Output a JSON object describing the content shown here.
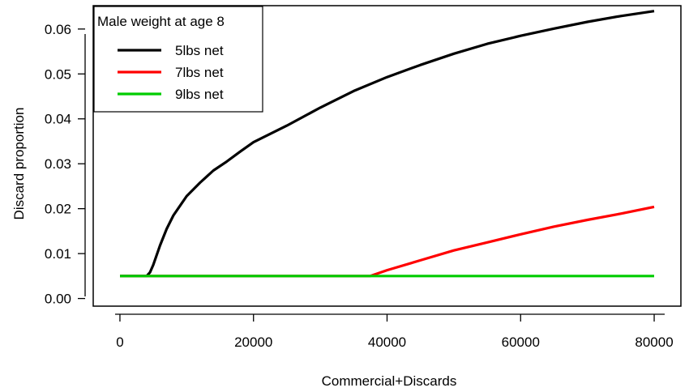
{
  "chart_data": {
    "type": "line",
    "title": "",
    "xlabel": "Commercial+Discards",
    "ylabel": "Discard proportion",
    "xlim": [
      -4000,
      84000
    ],
    "ylim": [
      -0.0017,
      0.0652
    ],
    "xticks": [
      0,
      20000,
      40000,
      60000,
      80000
    ],
    "xtick_labels": [
      "0",
      "20000",
      "40000",
      "60000",
      "80000"
    ],
    "yticks": [
      0.0,
      0.01,
      0.02,
      0.03,
      0.04,
      0.05,
      0.06
    ],
    "ytick_labels": [
      "0.00",
      "0.01",
      "0.02",
      "0.03",
      "0.04",
      "0.05",
      "0.06"
    ],
    "grid": false,
    "legend": {
      "title": "Male weight at age 8",
      "placement": "top-left"
    },
    "series": [
      {
        "name": "5lbs net",
        "color": "#000000",
        "x": [
          0,
          4000,
          4500,
          5000,
          6000,
          7000,
          8000,
          10000,
          12000,
          14000,
          16000,
          18000,
          20000,
          25000,
          30000,
          35000,
          40000,
          45000,
          50000,
          55000,
          60000,
          65000,
          70000,
          75000,
          80000
        ],
        "y": [
          0.005,
          0.005,
          0.0058,
          0.0075,
          0.0118,
          0.0155,
          0.0185,
          0.0228,
          0.0258,
          0.0285,
          0.0305,
          0.0327,
          0.0348,
          0.0385,
          0.0425,
          0.0462,
          0.0493,
          0.052,
          0.0545,
          0.0567,
          0.0585,
          0.0601,
          0.0616,
          0.0629,
          0.064
        ]
      },
      {
        "name": "7lbs net",
        "color": "#ff0000",
        "x": [
          0,
          37500,
          40000,
          45000,
          50000,
          55000,
          60000,
          65000,
          70000,
          75000,
          80000
        ],
        "y": [
          0.005,
          0.005,
          0.0063,
          0.0085,
          0.0107,
          0.0125,
          0.0143,
          0.016,
          0.0175,
          0.0189,
          0.0204
        ]
      },
      {
        "name": "9lbs net",
        "color": "#00cc00",
        "x": [
          0,
          80000
        ],
        "y": [
          0.005,
          0.005
        ]
      }
    ]
  }
}
